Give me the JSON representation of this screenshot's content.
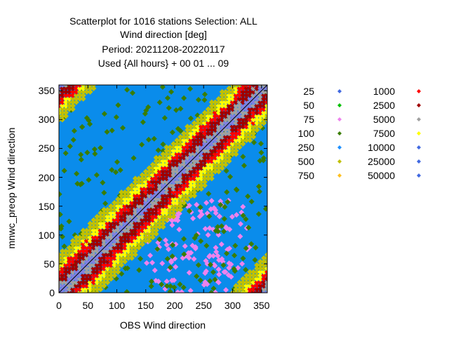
{
  "chart_data": {
    "type": "scatter",
    "title_lines": [
      "Scatterplot for 1016 stations Selection: ALL",
      "Wind direction [deg]",
      "Period: 20211208-20220117",
      "Used {All hours} + 00 01 ... 09"
    ],
    "xlabel": "OBS Wind direction",
    "ylabel": "mnwc_preop Wind direction",
    "xlim": [
      0,
      360
    ],
    "ylim": [
      0,
      360
    ],
    "xticks": [
      0,
      50,
      100,
      150,
      200,
      250,
      300,
      350
    ],
    "yticks": [
      0,
      50,
      100,
      150,
      200,
      250,
      300,
      350
    ],
    "diagonal_line": true,
    "grid": false,
    "legend_position": "right",
    "legend": [
      {
        "label": "25",
        "color": "#4169e1"
      },
      {
        "label": "50",
        "color": "#00c000"
      },
      {
        "label": "75",
        "color": "#ee82ee"
      },
      {
        "label": "100",
        "color": "#3a7d00"
      },
      {
        "label": "250",
        "color": "#1e90ff"
      },
      {
        "label": "500",
        "color": "#c0c000"
      },
      {
        "label": "750",
        "color": "#ffc020"
      },
      {
        "label": "1000",
        "color": "#ff0000"
      },
      {
        "label": "2500",
        "color": "#a00000"
      },
      {
        "label": "5000",
        "color": "#a0a0a0"
      },
      {
        "label": "7500",
        "color": "#ffff00"
      },
      {
        "label": "10000",
        "color": "#4169e1"
      },
      {
        "label": "25000",
        "color": "#4169e1"
      },
      {
        "label": "50000",
        "color": "#4169e1"
      }
    ],
    "background_color": "#0a8ceb",
    "density_bands": [
      {
        "max_distance_from_diagonal": 6,
        "color": "#8080e0"
      },
      {
        "max_distance_from_diagonal": 14,
        "color": "#a0a0a0"
      },
      {
        "max_distance_from_diagonal": 28,
        "color": "#a00000"
      },
      {
        "max_distance_from_diagonal": 38,
        "color": "#ff0000"
      },
      {
        "max_distance_from_diagonal": 48,
        "color": "#ffff00"
      },
      {
        "max_distance_from_diagonal": 66,
        "color": "#c0c000"
      }
    ],
    "scattered_regions": [
      {
        "x": [
          150,
          330
        ],
        "y": [
          0,
          160
        ],
        "color": "#ee82ee"
      },
      {
        "x": [
          0,
          360
        ],
        "y": [
          0,
          360
        ],
        "color": "#3a7d00"
      }
    ]
  }
}
